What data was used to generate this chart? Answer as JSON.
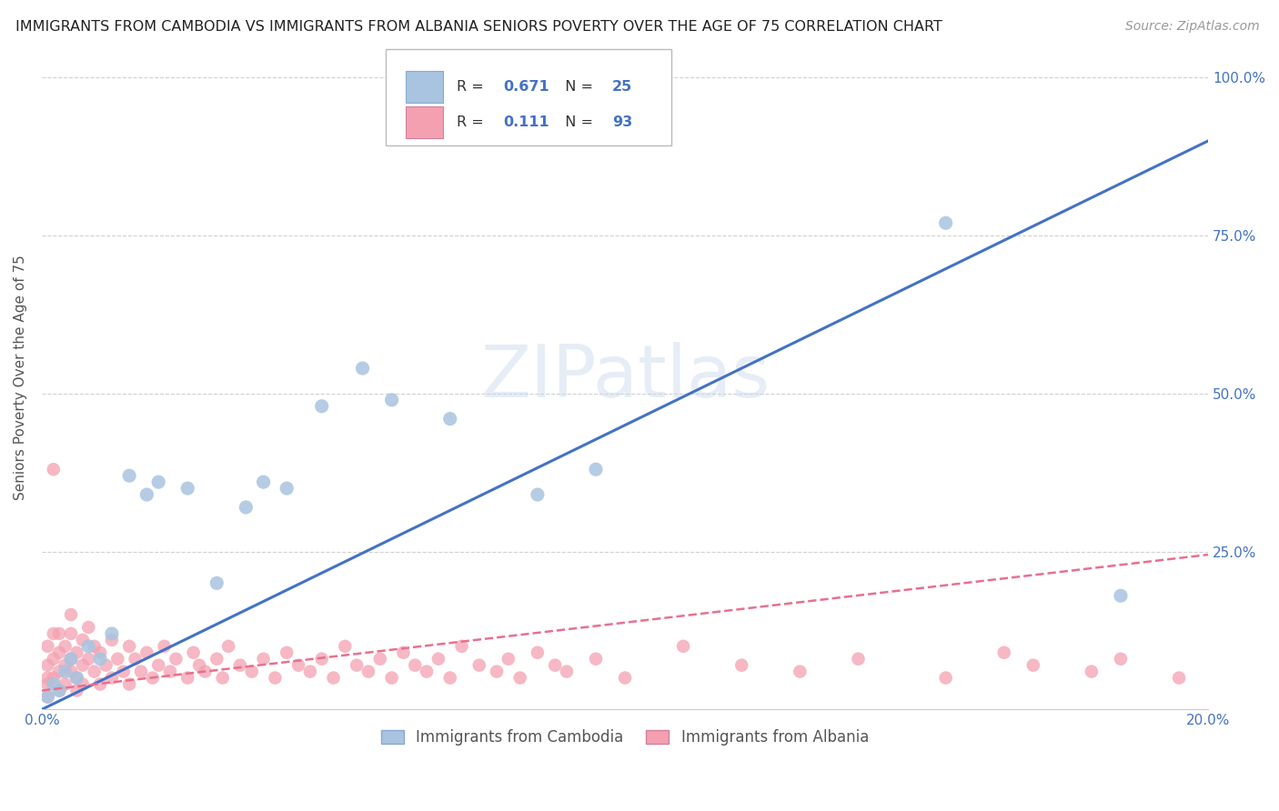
{
  "title": "IMMIGRANTS FROM CAMBODIA VS IMMIGRANTS FROM ALBANIA SENIORS POVERTY OVER THE AGE OF 75 CORRELATION CHART",
  "source": "Source: ZipAtlas.com",
  "ylabel": "Seniors Poverty Over the Age of 75",
  "xlim": [
    0.0,
    0.2
  ],
  "ylim": [
    0.0,
    1.05
  ],
  "x_ticks": [
    0.0,
    0.05,
    0.1,
    0.15,
    0.2
  ],
  "y_ticks": [
    0.0,
    0.25,
    0.5,
    0.75,
    1.0
  ],
  "r_cambodia": 0.671,
  "n_cambodia": 25,
  "r_albania": 0.111,
  "n_albania": 93,
  "cambodia_color": "#a8c4e0",
  "albania_color": "#f4a0b0",
  "cambodia_line_color": "#4472c4",
  "albania_line_color": "#e87090",
  "legend_label_cambodia": "Immigrants from Cambodia",
  "legend_label_albania": "Immigrants from Albania",
  "watermark": "ZIPatlas",
  "background_color": "#ffffff",
  "grid_color": "#cccccc",
  "tick_color": "#4472c4",
  "cambodia_x": [
    0.001,
    0.002,
    0.003,
    0.004,
    0.005,
    0.006,
    0.008,
    0.01,
    0.012,
    0.015,
    0.018,
    0.02,
    0.025,
    0.03,
    0.035,
    0.038,
    0.042,
    0.048,
    0.055,
    0.06,
    0.07,
    0.085,
    0.095,
    0.155,
    0.185
  ],
  "cambodia_y": [
    0.02,
    0.04,
    0.03,
    0.06,
    0.08,
    0.05,
    0.1,
    0.08,
    0.12,
    0.37,
    0.34,
    0.36,
    0.35,
    0.2,
    0.32,
    0.36,
    0.35,
    0.48,
    0.54,
    0.49,
    0.46,
    0.34,
    0.38,
    0.77,
    0.18
  ],
  "albania_x": [
    0.001,
    0.001,
    0.001,
    0.001,
    0.001,
    0.002,
    0.002,
    0.002,
    0.002,
    0.003,
    0.003,
    0.003,
    0.003,
    0.004,
    0.004,
    0.004,
    0.005,
    0.005,
    0.005,
    0.005,
    0.006,
    0.006,
    0.006,
    0.007,
    0.007,
    0.007,
    0.008,
    0.008,
    0.009,
    0.009,
    0.01,
    0.01,
    0.011,
    0.012,
    0.012,
    0.013,
    0.014,
    0.015,
    0.015,
    0.016,
    0.017,
    0.018,
    0.019,
    0.02,
    0.021,
    0.022,
    0.023,
    0.025,
    0.026,
    0.027,
    0.028,
    0.03,
    0.031,
    0.032,
    0.034,
    0.036,
    0.038,
    0.04,
    0.042,
    0.044,
    0.046,
    0.048,
    0.05,
    0.052,
    0.054,
    0.056,
    0.058,
    0.06,
    0.062,
    0.064,
    0.066,
    0.068,
    0.07,
    0.072,
    0.075,
    0.078,
    0.08,
    0.082,
    0.085,
    0.088,
    0.09,
    0.095,
    0.1,
    0.11,
    0.12,
    0.13,
    0.14,
    0.155,
    0.165,
    0.17,
    0.18,
    0.185,
    0.195
  ],
  "albania_y": [
    0.04,
    0.07,
    0.02,
    0.1,
    0.05,
    0.38,
    0.08,
    0.12,
    0.05,
    0.06,
    0.09,
    0.03,
    0.12,
    0.07,
    0.1,
    0.04,
    0.08,
    0.15,
    0.06,
    0.12,
    0.05,
    0.09,
    0.03,
    0.07,
    0.11,
    0.04,
    0.08,
    0.13,
    0.06,
    0.1,
    0.04,
    0.09,
    0.07,
    0.05,
    0.11,
    0.08,
    0.06,
    0.1,
    0.04,
    0.08,
    0.06,
    0.09,
    0.05,
    0.07,
    0.1,
    0.06,
    0.08,
    0.05,
    0.09,
    0.07,
    0.06,
    0.08,
    0.05,
    0.1,
    0.07,
    0.06,
    0.08,
    0.05,
    0.09,
    0.07,
    0.06,
    0.08,
    0.05,
    0.1,
    0.07,
    0.06,
    0.08,
    0.05,
    0.09,
    0.07,
    0.06,
    0.08,
    0.05,
    0.1,
    0.07,
    0.06,
    0.08,
    0.05,
    0.09,
    0.07,
    0.06,
    0.08,
    0.05,
    0.1,
    0.07,
    0.06,
    0.08,
    0.05,
    0.09,
    0.07,
    0.06,
    0.08,
    0.05
  ],
  "cam_line_x0": 0.0,
  "cam_line_y0": 0.0,
  "cam_line_x1": 0.2,
  "cam_line_y1": 0.9,
  "alb_line_x0": 0.0,
  "alb_line_y0": 0.03,
  "alb_line_x1": 0.2,
  "alb_line_y1": 0.245
}
